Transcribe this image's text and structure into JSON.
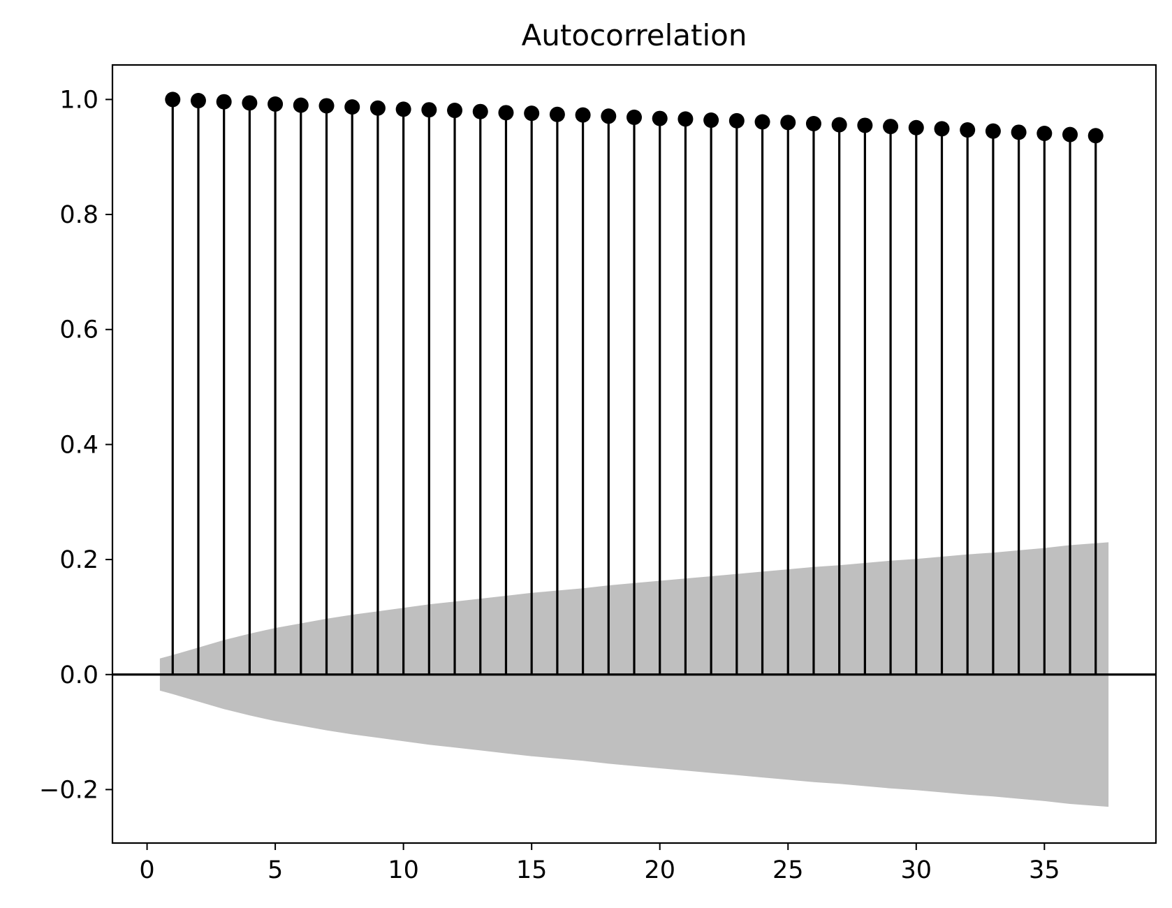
{
  "chart_data": {
    "type": "stem",
    "title": "Autocorrelation",
    "xlabel": "",
    "ylabel": "",
    "xlim": [
      -1.35,
      39.35
    ],
    "ylim": [
      -0.293,
      1.06
    ],
    "xticks": [
      0,
      5,
      10,
      15,
      20,
      25,
      30,
      35
    ],
    "xtick_labels": [
      "0",
      "5",
      "10",
      "15",
      "20",
      "25",
      "30",
      "35"
    ],
    "yticks": [
      -0.2,
      0.0,
      0.2,
      0.4,
      0.6,
      0.8,
      1.0
    ],
    "ytick_labels": [
      "−0.2",
      "0.0",
      "0.2",
      "0.4",
      "0.6",
      "0.8",
      "1.0"
    ],
    "grid": false,
    "lags": [
      1,
      2,
      3,
      4,
      5,
      6,
      7,
      8,
      9,
      10,
      11,
      12,
      13,
      14,
      15,
      16,
      17,
      18,
      19,
      20,
      21,
      22,
      23,
      24,
      25,
      26,
      27,
      28,
      29,
      30,
      31,
      32,
      33,
      34,
      35,
      36,
      37
    ],
    "values": [
      1.0,
      0.998,
      0.996,
      0.994,
      0.992,
      0.99,
      0.989,
      0.987,
      0.985,
      0.983,
      0.982,
      0.981,
      0.979,
      0.977,
      0.976,
      0.974,
      0.973,
      0.971,
      0.969,
      0.967,
      0.966,
      0.964,
      0.963,
      0.961,
      0.96,
      0.958,
      0.956,
      0.955,
      0.953,
      0.951,
      0.949,
      0.947,
      0.945,
      0.943,
      0.941,
      0.939,
      0.937
    ],
    "confidence_band": {
      "x": [
        0.5,
        1,
        2,
        3,
        4,
        5,
        6,
        7,
        8,
        9,
        10,
        11,
        12,
        13,
        14,
        15,
        16,
        17,
        18,
        19,
        20,
        21,
        22,
        23,
        24,
        25,
        26,
        27,
        28,
        29,
        30,
        31,
        32,
        33,
        34,
        35,
        36,
        37.5
      ],
      "upper": [
        0.028,
        0.034,
        0.047,
        0.06,
        0.071,
        0.081,
        0.089,
        0.097,
        0.104,
        0.11,
        0.116,
        0.122,
        0.127,
        0.132,
        0.137,
        0.142,
        0.146,
        0.15,
        0.155,
        0.159,
        0.163,
        0.167,
        0.171,
        0.175,
        0.179,
        0.183,
        0.187,
        0.19,
        0.194,
        0.198,
        0.201,
        0.205,
        0.209,
        0.212,
        0.216,
        0.22,
        0.225,
        0.23
      ],
      "color": "#bfbfbf"
    },
    "marker_color": "#000000",
    "stem_color": "#000000"
  }
}
